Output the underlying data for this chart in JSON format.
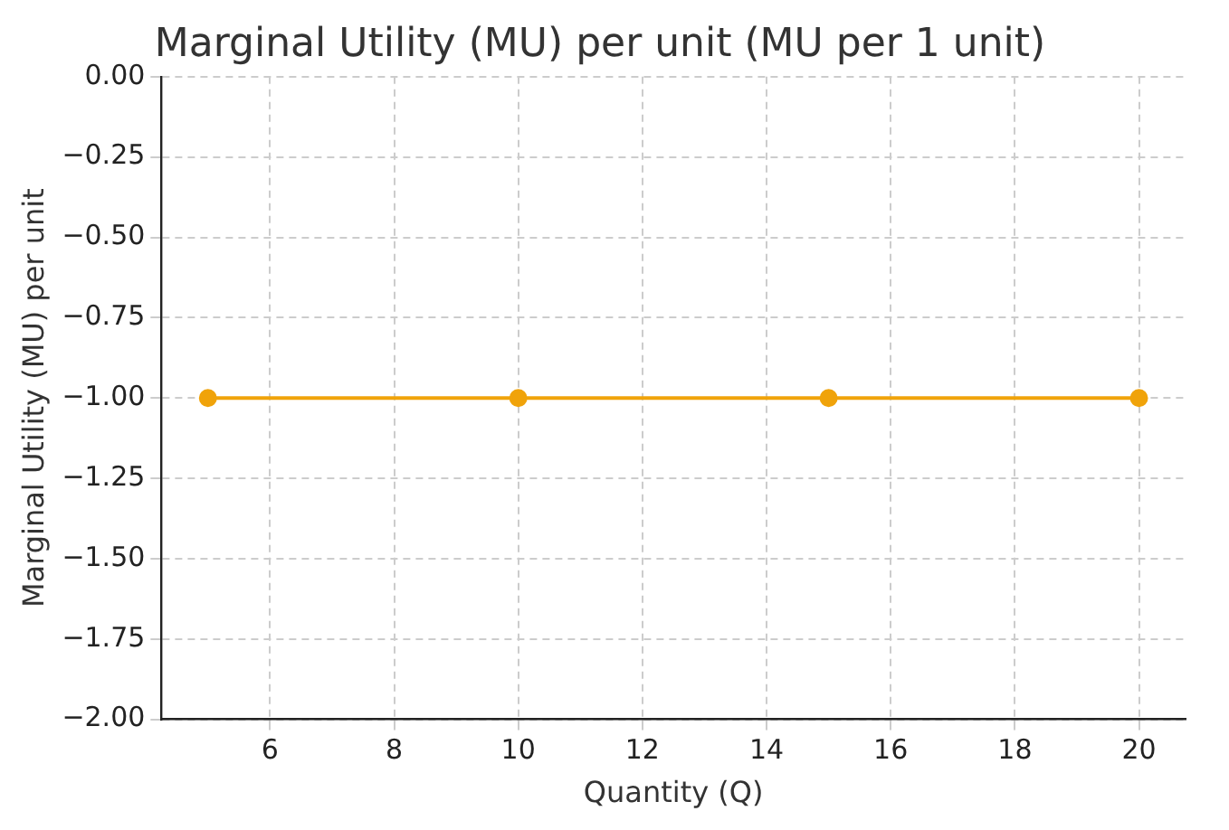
{
  "chart_data": {
    "type": "line",
    "title": "Marginal Utility (MU) per unit (MU per 1 unit)",
    "xlabel": "Quantity (Q)",
    "ylabel": "Marginal Utility (MU) per unit",
    "x": [
      5,
      10,
      15,
      20
    ],
    "series": [
      {
        "color": "#f0a30a",
        "values": [
          -1,
          -1,
          -1,
          -1
        ]
      }
    ],
    "xlim": [
      4.25,
      20.75
    ],
    "xticks": [
      6,
      8,
      10,
      12,
      14,
      16,
      18,
      20
    ],
    "ylim": [
      -2,
      0
    ],
    "yticks": [
      {
        "value": -2,
        "label": "−2.00"
      },
      {
        "value": -1.75,
        "label": "−1.75"
      },
      {
        "value": -1.5,
        "label": "−1.50"
      },
      {
        "value": -1.25,
        "label": "−1.25"
      },
      {
        "value": -1,
        "label": "−1.00"
      },
      {
        "value": -0.75,
        "label": "−0.75"
      },
      {
        "value": -0.5,
        "label": "−0.50"
      },
      {
        "value": -0.25,
        "label": "−0.25"
      },
      {
        "value": 0,
        "label": "0.00"
      }
    ],
    "grid": true,
    "marker": "circle",
    "line_style": "solid"
  }
}
